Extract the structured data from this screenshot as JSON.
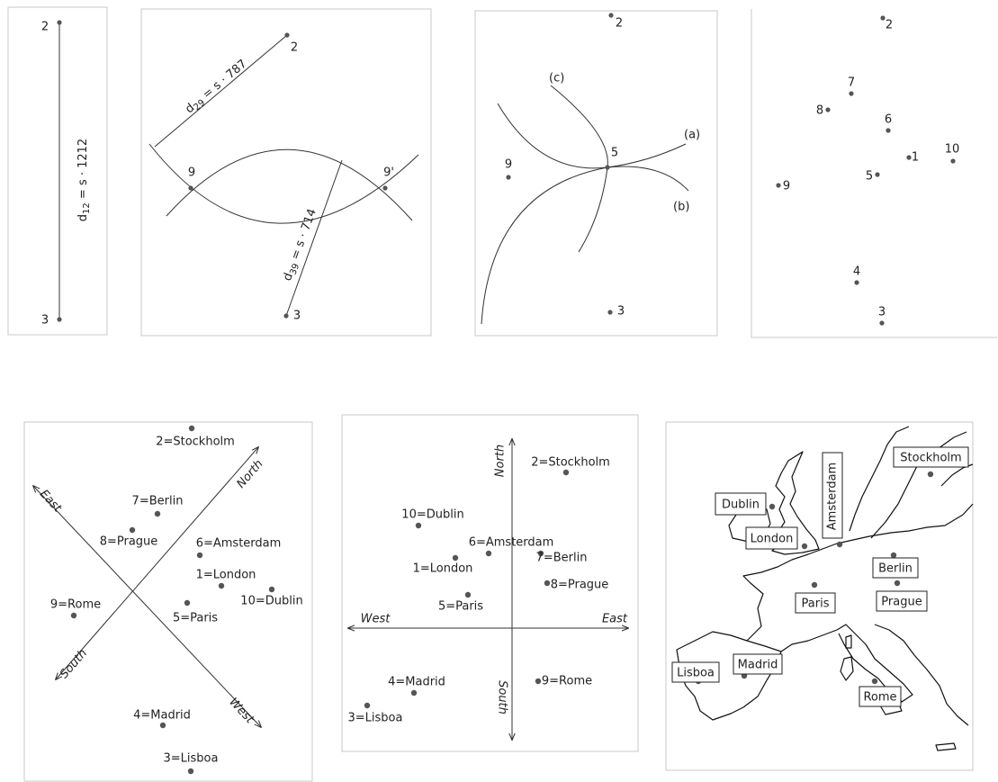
{
  "panels": [
    {
      "labels": [
        "2",
        "3"
      ],
      "formula": [
        "d",
        "12",
        " = s · 1212"
      ]
    },
    {
      "labels": [
        "2",
        "3",
        "9",
        "9'"
      ],
      "formulas": [
        [
          "d",
          "29",
          " = s · 787"
        ],
        [
          "d",
          "39",
          " = s · 714"
        ]
      ]
    },
    {
      "labels": [
        "2",
        "3",
        "9",
        "5"
      ],
      "curves": [
        "(a)",
        "(b)",
        "(c)"
      ]
    },
    {
      "labels": [
        "2",
        "7",
        "8",
        "6",
        "1",
        "10",
        "5",
        "9",
        "4",
        "3"
      ]
    },
    {
      "cities": [
        "2=Stockholm",
        "7=Berlin",
        "8=Prague",
        "6=Amsterdam",
        "1=London",
        "10=Dublin",
        "5=Paris",
        "9=Rome",
        "4=Madrid",
        "3=Lisboa"
      ],
      "directions": [
        "North",
        "East",
        "South",
        "West"
      ]
    },
    {
      "cities": [
        "2=Stockholm",
        "10=Dublin",
        "6=Amsterdam",
        "7=Berlin",
        "1=London",
        "8=Prague",
        "5=Paris",
        "9=Rome",
        "4=Madrid",
        "3=Lisboa"
      ],
      "directions": [
        "North",
        "South",
        "West",
        "East"
      ]
    },
    {
      "cities": [
        "Stockholm",
        "Dublin",
        "Amsterdam",
        "London",
        "Berlin",
        "Paris",
        "Prague",
        "Lisboa",
        "Madrid",
        "Rome"
      ]
    }
  ]
}
